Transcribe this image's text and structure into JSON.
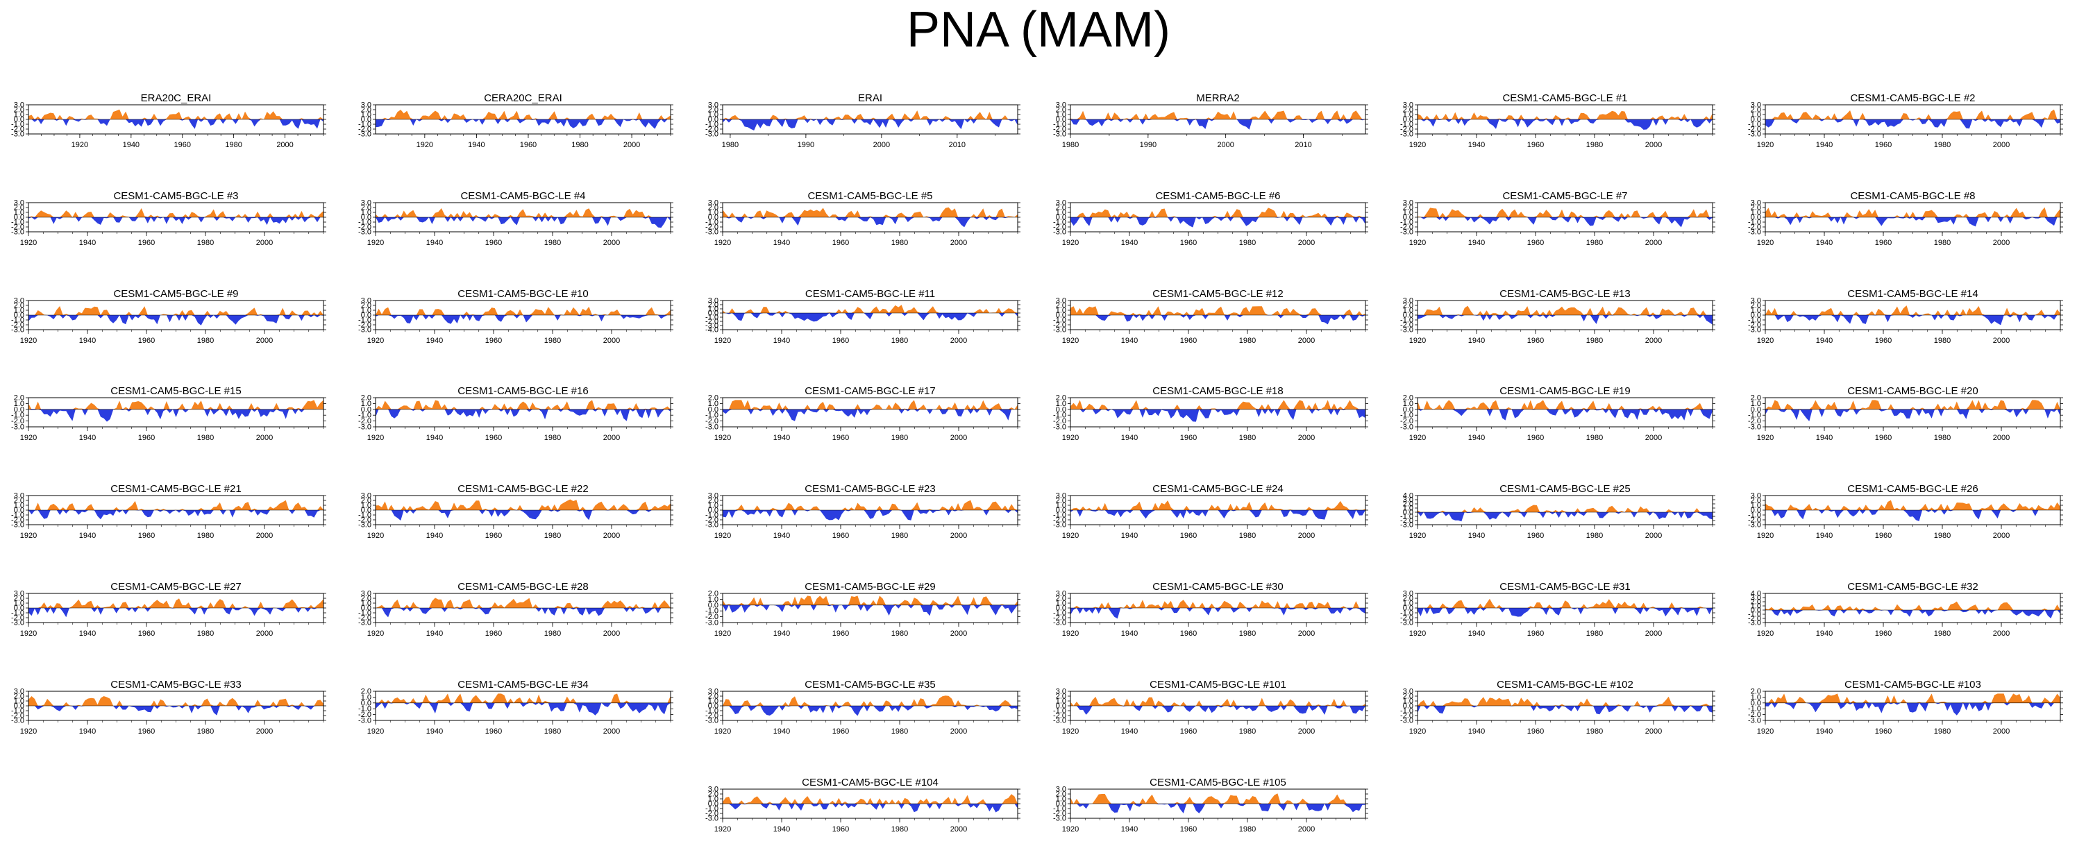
{
  "title": "PNA (MAM)",
  "colors": {
    "positive": "#f5841f",
    "negative": "#2b3ddf",
    "axis": "#000000"
  },
  "chart_data": {
    "type": "area",
    "description_free": true,
    "panels": [
      {
        "title": "ERA20C_ERAI",
        "x": [
          1920,
          1940,
          1960,
          1980,
          2000
        ],
        "xrange": [
          1900,
          2015
        ],
        "yticks": [
          "3.0",
          "2.0",
          "1.0",
          "0.0",
          "-1.0",
          "-2.0",
          "-3.0"
        ],
        "ylim": [
          -3,
          3
        ],
        "seed": 1
      },
      {
        "title": "CERA20C_ERAI",
        "x": [
          1920,
          1940,
          1960,
          1980,
          2000
        ],
        "xrange": [
          1901,
          2015
        ],
        "yticks": [
          "3.0",
          "2.0",
          "1.0",
          "0.0",
          "-1.0",
          "-2.0",
          "-3.0"
        ],
        "ylim": [
          -3,
          3
        ],
        "seed": 2
      },
      {
        "title": "ERAI",
        "x": [
          1980,
          1990,
          2000,
          2010
        ],
        "xrange": [
          1979,
          2018
        ],
        "yticks": [
          "3.0",
          "2.0",
          "1.0",
          "0.0",
          "-1.0",
          "-2.0",
          "-3.0"
        ],
        "ylim": [
          -3,
          3
        ],
        "seed": 3
      },
      {
        "title": "MERRA2",
        "x": [
          1980,
          1990,
          2000,
          2010
        ],
        "xrange": [
          1980,
          2018
        ],
        "yticks": [
          "3.0",
          "2.0",
          "1.0",
          "0.0",
          "-1.0",
          "-2.0",
          "-3.0"
        ],
        "ylim": [
          -3,
          3
        ],
        "seed": 4
      },
      {
        "title": "CESM1-CAM5-BGC-LE #1",
        "x": [
          1920,
          1940,
          1960,
          1980,
          2000
        ],
        "xrange": [
          1920,
          2020
        ],
        "yticks": [
          "3.0",
          "2.0",
          "1.0",
          "0.0",
          "-1.0",
          "-2.0",
          "-3.0"
        ],
        "ylim": [
          -3,
          3
        ],
        "seed": 5
      },
      {
        "title": "CESM1-CAM5-BGC-LE #2",
        "x": [
          1920,
          1940,
          1960,
          1980,
          2000
        ],
        "xrange": [
          1920,
          2020
        ],
        "yticks": [
          "3.0",
          "2.0",
          "1.0",
          "0.0",
          "-1.0",
          "-2.0",
          "-3.0"
        ],
        "ylim": [
          -3,
          3
        ],
        "seed": 6
      },
      {
        "title": "CESM1-CAM5-BGC-LE #3",
        "x": [
          1920,
          1940,
          1960,
          1980,
          2000
        ],
        "xrange": [
          1920,
          2020
        ],
        "yticks": [
          "3.0",
          "2.0",
          "1.0",
          "0.0",
          "-1.0",
          "-2.0",
          "-3.0"
        ],
        "ylim": [
          -3,
          3
        ],
        "seed": 7
      },
      {
        "title": "CESM1-CAM5-BGC-LE #4",
        "x": [
          1920,
          1940,
          1960,
          1980,
          2000
        ],
        "xrange": [
          1920,
          2020
        ],
        "yticks": [
          "3.0",
          "2.0",
          "1.0",
          "0.0",
          "-1.0",
          "-2.0",
          "-3.0"
        ],
        "ylim": [
          -3,
          3
        ],
        "seed": 8
      },
      {
        "title": "CESM1-CAM5-BGC-LE #5",
        "x": [
          1920,
          1940,
          1960,
          1980,
          2000
        ],
        "xrange": [
          1920,
          2020
        ],
        "yticks": [
          "3.0",
          "2.0",
          "1.0",
          "0.0",
          "-1.0",
          "-2.0",
          "-3.0"
        ],
        "ylim": [
          -3,
          3
        ],
        "seed": 9
      },
      {
        "title": "CESM1-CAM5-BGC-LE #6",
        "x": [
          1920,
          1940,
          1960,
          1980,
          2000
        ],
        "xrange": [
          1920,
          2020
        ],
        "yticks": [
          "3.0",
          "2.0",
          "1.0",
          "0.0",
          "-1.0",
          "-2.0",
          "-3.0"
        ],
        "ylim": [
          -3,
          3
        ],
        "seed": 10
      },
      {
        "title": "CESM1-CAM5-BGC-LE #7",
        "x": [
          1920,
          1940,
          1960,
          1980,
          2000
        ],
        "xrange": [
          1920,
          2020
        ],
        "yticks": [
          "3.0",
          "2.0",
          "1.0",
          "0.0",
          "-1.0",
          "-2.0",
          "-3.0"
        ],
        "ylim": [
          -3,
          3
        ],
        "seed": 11
      },
      {
        "title": "CESM1-CAM5-BGC-LE #8",
        "x": [
          1920,
          1940,
          1960,
          1980,
          2000
        ],
        "xrange": [
          1920,
          2020
        ],
        "yticks": [
          "3.0",
          "2.0",
          "1.0",
          "0.0",
          "-1.0",
          "-2.0",
          "-3.0"
        ],
        "ylim": [
          -3,
          3
        ],
        "seed": 12
      },
      {
        "title": "CESM1-CAM5-BGC-LE #9",
        "x": [
          1920,
          1940,
          1960,
          1980,
          2000
        ],
        "xrange": [
          1920,
          2020
        ],
        "yticks": [
          "3.0",
          "2.0",
          "1.0",
          "0.0",
          "-1.0",
          "-2.0",
          "-3.0"
        ],
        "ylim": [
          -3,
          3
        ],
        "seed": 13
      },
      {
        "title": "CESM1-CAM5-BGC-LE #10",
        "x": [
          1920,
          1940,
          1960,
          1980,
          2000
        ],
        "xrange": [
          1920,
          2020
        ],
        "yticks": [
          "3.0",
          "2.0",
          "1.0",
          "0.0",
          "-1.0",
          "-2.0",
          "-3.0"
        ],
        "ylim": [
          -3,
          3
        ],
        "seed": 14
      },
      {
        "title": "CESM1-CAM5-BGC-LE #11",
        "x": [
          1920,
          1940,
          1960,
          1980,
          2000
        ],
        "xrange": [
          1920,
          2020
        ],
        "yticks": [
          "3.0",
          "2.0",
          "1.0",
          "0.0",
          "-1.0",
          "-2.0",
          "-3.0",
          "-4.0"
        ],
        "ylim": [
          -4,
          3
        ],
        "seed": 15
      },
      {
        "title": "CESM1-CAM5-BGC-LE #12",
        "x": [
          1920,
          1940,
          1960,
          1980,
          2000
        ],
        "xrange": [
          1920,
          2020
        ],
        "yticks": [
          "3.0",
          "2.0",
          "1.0",
          "0.0",
          "-1.0",
          "-2.0",
          "-3.0"
        ],
        "ylim": [
          -3,
          3
        ],
        "seed": 16
      },
      {
        "title": "CESM1-CAM5-BGC-LE #13",
        "x": [
          1920,
          1940,
          1960,
          1980,
          2000
        ],
        "xrange": [
          1920,
          2020
        ],
        "yticks": [
          "3.0",
          "2.0",
          "1.0",
          "0.0",
          "-1.0",
          "-2.0",
          "-3.0"
        ],
        "ylim": [
          -3,
          3
        ],
        "seed": 17
      },
      {
        "title": "CESM1-CAM5-BGC-LE #14",
        "x": [
          1920,
          1940,
          1960,
          1980,
          2000
        ],
        "xrange": [
          1920,
          2020
        ],
        "yticks": [
          "3.0",
          "2.0",
          "1.0",
          "0.0",
          "-1.0",
          "-2.0",
          "-3.0"
        ],
        "ylim": [
          -3,
          3
        ],
        "seed": 18
      },
      {
        "title": "CESM1-CAM5-BGC-LE #15",
        "x": [
          1920,
          1940,
          1960,
          1980,
          2000
        ],
        "xrange": [
          1920,
          2020
        ],
        "yticks": [
          "2.0",
          "1.0",
          "0.0",
          "-1.0",
          "-2.0",
          "-3.0"
        ],
        "ylim": [
          -3,
          2
        ],
        "seed": 19
      },
      {
        "title": "CESM1-CAM5-BGC-LE #16",
        "x": [
          1920,
          1940,
          1960,
          1980,
          2000
        ],
        "xrange": [
          1920,
          2020
        ],
        "yticks": [
          "2.0",
          "1.0",
          "0.0",
          "-1.0",
          "-2.0",
          "-3.0"
        ],
        "ylim": [
          -3,
          2
        ],
        "seed": 20
      },
      {
        "title": "CESM1-CAM5-BGC-LE #17",
        "x": [
          1920,
          1940,
          1960,
          1980,
          2000
        ],
        "xrange": [
          1920,
          2020
        ],
        "yticks": [
          "2.0",
          "1.0",
          "0.0",
          "-1.0",
          "-2.0",
          "-3.0"
        ],
        "ylim": [
          -3,
          2
        ],
        "seed": 21
      },
      {
        "title": "CESM1-CAM5-BGC-LE #18",
        "x": [
          1920,
          1940,
          1960,
          1980,
          2000
        ],
        "xrange": [
          1920,
          2020
        ],
        "yticks": [
          "2.0",
          "1.0",
          "0.0",
          "-1.0",
          "-2.0",
          "-3.0"
        ],
        "ylim": [
          -3,
          2
        ],
        "seed": 22
      },
      {
        "title": "CESM1-CAM5-BGC-LE #19",
        "x": [
          1920,
          1940,
          1960,
          1980,
          2000
        ],
        "xrange": [
          1920,
          2020
        ],
        "yticks": [
          "2.0",
          "1.0",
          "0.0",
          "-1.0",
          "-2.0",
          "-3.0"
        ],
        "ylim": [
          -3,
          2
        ],
        "seed": 23
      },
      {
        "title": "CESM1-CAM5-BGC-LE #20",
        "x": [
          1920,
          1940,
          1960,
          1980,
          2000
        ],
        "xrange": [
          1920,
          2020
        ],
        "yticks": [
          "2.0",
          "1.0",
          "0.0",
          "-1.0",
          "-2.0",
          "-3.0"
        ],
        "ylim": [
          -3,
          2
        ],
        "seed": 24
      },
      {
        "title": "CESM1-CAM5-BGC-LE #21",
        "x": [
          1920,
          1940,
          1960,
          1980,
          2000
        ],
        "xrange": [
          1920,
          2020
        ],
        "yticks": [
          "3.0",
          "2.0",
          "1.0",
          "0.0",
          "-1.0",
          "-2.0",
          "-3.0"
        ],
        "ylim": [
          -3,
          3
        ],
        "seed": 25
      },
      {
        "title": "CESM1-CAM5-BGC-LE #22",
        "x": [
          1920,
          1940,
          1960,
          1980,
          2000
        ],
        "xrange": [
          1920,
          2020
        ],
        "yticks": [
          "3.0",
          "2.0",
          "1.0",
          "0.0",
          "-1.0",
          "-2.0",
          "-3.0"
        ],
        "ylim": [
          -3,
          3
        ],
        "seed": 26
      },
      {
        "title": "CESM1-CAM5-BGC-LE #23",
        "x": [
          1920,
          1940,
          1960,
          1980,
          2000
        ],
        "xrange": [
          1920,
          2020
        ],
        "yticks": [
          "3.0",
          "2.0",
          "1.0",
          "0.0",
          "-1.0",
          "-2.0",
          "-3.0"
        ],
        "ylim": [
          -3,
          3
        ],
        "seed": 27
      },
      {
        "title": "CESM1-CAM5-BGC-LE #24",
        "x": [
          1920,
          1940,
          1960,
          1980,
          2000
        ],
        "xrange": [
          1920,
          2020
        ],
        "yticks": [
          "3.0",
          "2.0",
          "1.0",
          "0.0",
          "-1.0",
          "-2.0",
          "-3.0"
        ],
        "ylim": [
          -3,
          3
        ],
        "seed": 28
      },
      {
        "title": "CESM1-CAM5-BGC-LE #25",
        "x": [
          1920,
          1940,
          1960,
          1980,
          2000
        ],
        "xrange": [
          1920,
          2020
        ],
        "yticks": [
          "4.0",
          "3.0",
          "2.0",
          "1.0",
          "0.0",
          "-1.0",
          "-2.0",
          "-3.0"
        ],
        "ylim": [
          -3,
          4
        ],
        "seed": 29
      },
      {
        "title": "CESM1-CAM5-BGC-LE #26",
        "x": [
          1920,
          1940,
          1960,
          1980,
          2000
        ],
        "xrange": [
          1920,
          2020
        ],
        "yticks": [
          "3.0",
          "2.0",
          "1.0",
          "0.0",
          "-1.0",
          "-2.0",
          "-3.0"
        ],
        "ylim": [
          -3,
          3
        ],
        "seed": 30
      },
      {
        "title": "CESM1-CAM5-BGC-LE #27",
        "x": [
          1920,
          1940,
          1960,
          1980,
          2000
        ],
        "xrange": [
          1920,
          2020
        ],
        "yticks": [
          "3.0",
          "2.0",
          "1.0",
          "0.0",
          "-1.0",
          "-2.0",
          "-3.0"
        ],
        "ylim": [
          -3,
          3
        ],
        "seed": 31
      },
      {
        "title": "CESM1-CAM5-BGC-LE #28",
        "x": [
          1920,
          1940,
          1960,
          1980,
          2000
        ],
        "xrange": [
          1920,
          2020
        ],
        "yticks": [
          "3.0",
          "2.0",
          "1.0",
          "0.0",
          "-1.0",
          "-2.0",
          "-3.0"
        ],
        "ylim": [
          -3,
          3
        ],
        "seed": 32
      },
      {
        "title": "CESM1-CAM5-BGC-LE #29",
        "x": [
          1920,
          1940,
          1960,
          1980,
          2000
        ],
        "xrange": [
          1920,
          2020
        ],
        "yticks": [
          "2.0",
          "1.0",
          "0.0",
          "-1.0",
          "-2.0",
          "-3.0"
        ],
        "ylim": [
          -3,
          2
        ],
        "seed": 33
      },
      {
        "title": "CESM1-CAM5-BGC-LE #30",
        "x": [
          1920,
          1940,
          1960,
          1980,
          2000
        ],
        "xrange": [
          1920,
          2020
        ],
        "yticks": [
          "3.0",
          "2.0",
          "1.0",
          "0.0",
          "-1.0",
          "-2.0",
          "-3.0"
        ],
        "ylim": [
          -3,
          3
        ],
        "seed": 34
      },
      {
        "title": "CESM1-CAM5-BGC-LE #31",
        "x": [
          1920,
          1940,
          1960,
          1980,
          2000
        ],
        "xrange": [
          1920,
          2020
        ],
        "yticks": [
          "3.0",
          "2.0",
          "1.0",
          "0.0",
          "-1.0",
          "-2.0",
          "-3.0"
        ],
        "ylim": [
          -3,
          3
        ],
        "seed": 35
      },
      {
        "title": "CESM1-CAM5-BGC-LE #32",
        "x": [
          1920,
          1940,
          1960,
          1980,
          2000
        ],
        "xrange": [
          1920,
          2020
        ],
        "yticks": [
          "4.0",
          "3.0",
          "2.0",
          "1.0",
          "0.0",
          "-1.0",
          "-2.0",
          "-3.0"
        ],
        "ylim": [
          -3,
          4
        ],
        "seed": 36
      },
      {
        "title": "CESM1-CAM5-BGC-LE #33",
        "x": [
          1920,
          1940,
          1960,
          1980,
          2000
        ],
        "xrange": [
          1920,
          2020
        ],
        "yticks": [
          "3.0",
          "2.0",
          "1.0",
          "0.0",
          "-1.0",
          "-2.0",
          "-3.0"
        ],
        "ylim": [
          -3,
          3
        ],
        "seed": 37
      },
      {
        "title": "CESM1-CAM5-BGC-LE #34",
        "x": [
          1920,
          1940,
          1960,
          1980,
          2000
        ],
        "xrange": [
          1920,
          2020
        ],
        "yticks": [
          "2.0",
          "1.0",
          "0.0",
          "-1.0",
          "-2.0",
          "-3.0"
        ],
        "ylim": [
          -3,
          2
        ],
        "seed": 38
      },
      {
        "title": "CESM1-CAM5-BGC-LE #35",
        "x": [
          1920,
          1940,
          1960,
          1980,
          2000
        ],
        "xrange": [
          1920,
          2020
        ],
        "yticks": [
          "3.0",
          "2.0",
          "1.0",
          "0.0",
          "-1.0",
          "-2.0",
          "-3.0"
        ],
        "ylim": [
          -3,
          3
        ],
        "seed": 39
      },
      {
        "title": "CESM1-CAM5-BGC-LE #101",
        "x": [
          1920,
          1940,
          1960,
          1980,
          2000
        ],
        "xrange": [
          1920,
          2020
        ],
        "yticks": [
          "3.0",
          "2.0",
          "1.0",
          "0.0",
          "-1.0",
          "-2.0",
          "-3.0"
        ],
        "ylim": [
          -3,
          3
        ],
        "seed": 40
      },
      {
        "title": "CESM1-CAM5-BGC-LE #102",
        "x": [
          1920,
          1940,
          1960,
          1980,
          2000
        ],
        "xrange": [
          1920,
          2020
        ],
        "yticks": [
          "3.0",
          "2.0",
          "1.0",
          "0.0",
          "-1.0",
          "-2.0",
          "-3.0"
        ],
        "ylim": [
          -3,
          3
        ],
        "seed": 41
      },
      {
        "title": "CESM1-CAM5-BGC-LE #103",
        "x": [
          1920,
          1940,
          1960,
          1980,
          2000
        ],
        "xrange": [
          1920,
          2020
        ],
        "yticks": [
          "2.0",
          "1.0",
          "0.0",
          "-1.0",
          "-2.0",
          "-3.0"
        ],
        "ylim": [
          -3,
          2
        ],
        "seed": 42
      },
      {
        "title": "CESM1-CAM5-BGC-LE #104",
        "x": [
          1920,
          1940,
          1960,
          1980,
          2000
        ],
        "xrange": [
          1920,
          2020
        ],
        "yticks": [
          "3.0",
          "2.0",
          "1.0",
          "0.0",
          "-1.0",
          "-2.0",
          "-3.0"
        ],
        "ylim": [
          -3,
          3
        ],
        "seed": 43
      },
      {
        "title": "CESM1-CAM5-BGC-LE #105",
        "x": [
          1920,
          1940,
          1960,
          1980,
          2000
        ],
        "xrange": [
          1920,
          2020
        ],
        "yticks": [
          "3.0",
          "2.0",
          "1.0",
          "0.0",
          "-1.0",
          "-2.0",
          "-3.0"
        ],
        "ylim": [
          -3,
          3
        ],
        "seed": 44
      }
    ]
  }
}
